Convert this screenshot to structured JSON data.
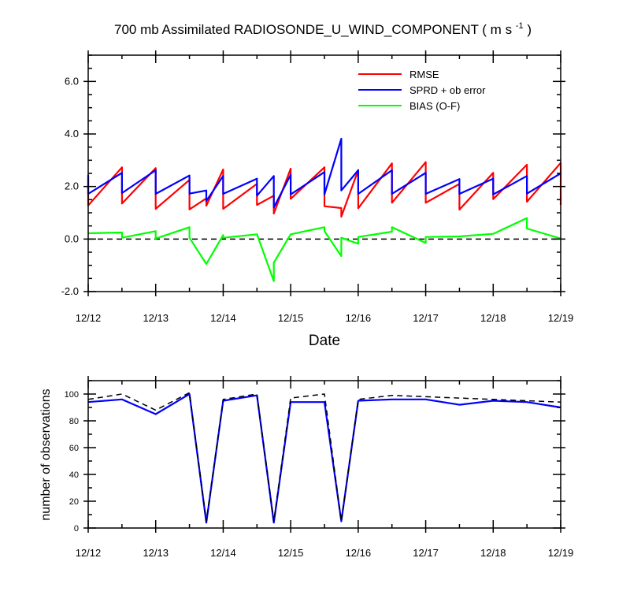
{
  "chart_data": [
    {
      "type": "line",
      "title_main": "700 mb Assimilated RADIOSONDE_U_WIND_COMPONENT ( m s",
      "title_sup": "-1",
      "title_end": " )",
      "xlabel": "Date",
      "ylabel": "",
      "x_ticks": [
        "12/12",
        "12/13",
        "12/14",
        "12/15",
        "12/16",
        "12/17",
        "12/18",
        "12/19"
      ],
      "x_range": [
        0,
        7
      ],
      "ylim": [
        -2,
        7
      ],
      "y_ticks": [
        -2,
        0,
        2,
        4,
        6
      ],
      "y_tick_labels": [
        "-2.0",
        "0.0",
        "2.0",
        "4.0",
        "6.0"
      ],
      "legend_position": "top-right",
      "series": [
        {
          "name": "RMSE",
          "color": "#ff0000",
          "points": [
            [
              0,
              2.35
            ],
            [
              0,
              1.28
            ],
            [
              0.5,
              2.73
            ],
            [
              0.5,
              1.35
            ],
            [
              1,
              2.7
            ],
            [
              1,
              1.15
            ],
            [
              1.5,
              2.25
            ],
            [
              1.5,
              1.13
            ],
            [
              1.75,
              1.55
            ],
            [
              1.75,
              1.27
            ],
            [
              2,
              2.65
            ],
            [
              2,
              1.15
            ],
            [
              2.5,
              2.1
            ],
            [
              2.5,
              1.3
            ],
            [
              2.75,
              1.65
            ],
            [
              2.75,
              0.97
            ],
            [
              3,
              2.68
            ],
            [
              3,
              1.53
            ],
            [
              3.5,
              2.73
            ],
            [
              3.5,
              1.25
            ],
            [
              3.75,
              1.18
            ],
            [
              3.75,
              0.85
            ],
            [
              4,
              2.63
            ],
            [
              4,
              1.17
            ],
            [
              4.5,
              2.88
            ],
            [
              4.5,
              1.38
            ],
            [
              5,
              2.93
            ],
            [
              5,
              1.38
            ],
            [
              5.5,
              2.1
            ],
            [
              5.5,
              1.12
            ],
            [
              6,
              2.52
            ],
            [
              6,
              1.52
            ],
            [
              6.5,
              2.83
            ],
            [
              6.5,
              1.42
            ],
            [
              7,
              2.9
            ],
            [
              7,
              1.3
            ]
          ]
        },
        {
          "name": "SPRD + ob error",
          "color": "#0000ff",
          "points": [
            [
              0,
              2.45
            ],
            [
              0,
              1.72
            ],
            [
              0.5,
              2.52
            ],
            [
              0.5,
              1.75
            ],
            [
              1,
              2.62
            ],
            [
              1,
              1.72
            ],
            [
              1.5,
              2.42
            ],
            [
              1.5,
              1.73
            ],
            [
              1.75,
              1.85
            ],
            [
              1.75,
              1.45
            ],
            [
              2,
              2.4
            ],
            [
              2,
              1.72
            ],
            [
              2.5,
              2.3
            ],
            [
              2.5,
              1.65
            ],
            [
              2.75,
              2.4
            ],
            [
              2.75,
              1.2
            ],
            [
              3,
              2.45
            ],
            [
              3,
              1.7
            ],
            [
              3.5,
              2.55
            ],
            [
              3.5,
              1.7
            ],
            [
              3.75,
              3.82
            ],
            [
              3.75,
              1.85
            ],
            [
              4,
              2.62
            ],
            [
              4,
              1.72
            ],
            [
              4.5,
              2.62
            ],
            [
              4.5,
              1.72
            ],
            [
              5,
              2.52
            ],
            [
              5,
              1.72
            ],
            [
              5.5,
              2.28
            ],
            [
              5.5,
              1.72
            ],
            [
              6,
              2.3
            ],
            [
              6,
              1.7
            ],
            [
              6.5,
              2.4
            ],
            [
              6.5,
              1.73
            ],
            [
              7,
              2.5
            ]
          ]
        },
        {
          "name": "BIAS (O-F)",
          "color": "#00ff00",
          "points": [
            [
              0,
              0.22
            ],
            [
              0.5,
              0.25
            ],
            [
              0.5,
              0.05
            ],
            [
              1,
              0.3
            ],
            [
              1,
              0.02
            ],
            [
              1.5,
              0.45
            ],
            [
              1.5,
              0.05
            ],
            [
              1.75,
              -0.95
            ],
            [
              2,
              0.15
            ],
            [
              2,
              0.05
            ],
            [
              2.5,
              0.18
            ],
            [
              2.75,
              -1.6
            ],
            [
              2.75,
              -0.9
            ],
            [
              3,
              0.18
            ],
            [
              3.5,
              0.45
            ],
            [
              3.5,
              0.3
            ],
            [
              3.75,
              -0.65
            ],
            [
              3.75,
              0.05
            ],
            [
              4,
              -0.18
            ],
            [
              4,
              0.08
            ],
            [
              4.5,
              0.28
            ],
            [
              4.5,
              0.45
            ],
            [
              5,
              -0.15
            ],
            [
              5,
              0.08
            ],
            [
              5.5,
              0.1
            ],
            [
              6,
              0.2
            ],
            [
              6.5,
              0.8
            ],
            [
              6.5,
              0.4
            ],
            [
              7,
              0.02
            ]
          ]
        }
      ],
      "reference_line": {
        "y": 0,
        "style": "dashed",
        "color": "#000000"
      }
    },
    {
      "type": "line",
      "ylabel": "number of observations",
      "x_ticks": [
        "12/12",
        "12/13",
        "12/14",
        "12/15",
        "12/16",
        "12/17",
        "12/18",
        "12/19"
      ],
      "x_range": [
        0,
        7
      ],
      "ylim": [
        0,
        110
      ],
      "y_ticks": [
        0,
        20,
        40,
        60,
        80,
        100
      ],
      "y_tick_labels": [
        "0",
        "20",
        "40",
        "60",
        "80",
        "100"
      ],
      "series": [
        {
          "name": "",
          "color": "#0000ff",
          "style": "solid",
          "points": [
            [
              0,
              94
            ],
            [
              0.5,
              96
            ],
            [
              1,
              85
            ],
            [
              1.5,
              100
            ],
            [
              1.75,
              4
            ],
            [
              2,
              95
            ],
            [
              2.5,
              99
            ],
            [
              2.75,
              4
            ],
            [
              3,
              94
            ],
            [
              3.5,
              94
            ],
            [
              3.75,
              5
            ],
            [
              4,
              95
            ],
            [
              4.5,
              96
            ],
            [
              5,
              96
            ],
            [
              5.5,
              92
            ],
            [
              6,
              95
            ],
            [
              6.5,
              94
            ],
            [
              7,
              90
            ]
          ]
        },
        {
          "name": "",
          "color": "#000000",
          "style": "dashed",
          "points": [
            [
              0,
              96
            ],
            [
              0.5,
              100
            ],
            [
              1,
              88
            ],
            [
              1.5,
              101
            ],
            [
              1.75,
              5
            ],
            [
              2,
              96
            ],
            [
              2.5,
              100
            ],
            [
              2.75,
              5
            ],
            [
              3,
              97
            ],
            [
              3.5,
              100
            ],
            [
              3.75,
              5
            ],
            [
              4,
              96
            ],
            [
              4.5,
              99
            ],
            [
              5,
              98
            ],
            [
              5.5,
              97
            ],
            [
              6,
              96
            ],
            [
              6.5,
              95
            ],
            [
              7,
              94
            ]
          ]
        }
      ]
    }
  ]
}
